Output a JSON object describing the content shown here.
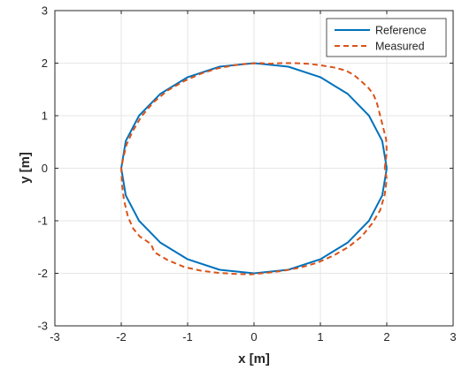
{
  "chart_data": {
    "type": "line",
    "title": "",
    "xlabel": "x [m]",
    "ylabel": "y [m]",
    "xlim": [
      -3,
      3
    ],
    "ylim": [
      -3,
      3
    ],
    "xticks": [
      -3,
      -2,
      -1,
      0,
      1,
      2,
      3
    ],
    "yticks": [
      -3,
      -2,
      -1,
      0,
      1,
      2,
      3
    ],
    "xtick_labels": [
      "-3",
      "-2",
      "-1",
      "0",
      "1",
      "2",
      "3"
    ],
    "ytick_labels": [
      "-3",
      "-2",
      "-1",
      "0",
      "1",
      "2",
      "3"
    ],
    "grid": true,
    "legend_position": "top-right",
    "series": [
      {
        "name": "Reference",
        "color": "#0072BD",
        "style": "solid",
        "x": [
          2.0,
          1.932,
          1.732,
          1.414,
          1.0,
          0.518,
          0.0,
          -0.518,
          -1.0,
          -1.414,
          -1.732,
          -1.932,
          -2.0,
          -1.932,
          -1.732,
          -1.414,
          -1.0,
          -0.518,
          0.0,
          0.518,
          1.0,
          1.414,
          1.732,
          1.932,
          2.0
        ],
        "y": [
          0.0,
          0.518,
          1.0,
          1.414,
          1.732,
          1.932,
          2.0,
          1.932,
          1.732,
          1.414,
          1.0,
          0.518,
          0.0,
          -0.518,
          -1.0,
          -1.414,
          -1.732,
          -1.932,
          -2.0,
          -1.932,
          -1.732,
          -1.414,
          -1.0,
          -0.518,
          0.0
        ]
      },
      {
        "name": "Measured",
        "color": "#D95319",
        "style": "dashed",
        "x": [
          1.97,
          2.0,
          1.99,
          1.96,
          1.93,
          1.89,
          1.85,
          1.8,
          1.73,
          1.62,
          1.5,
          1.38,
          1.2,
          1.0,
          0.8,
          0.6,
          0.4,
          0.25,
          0.1,
          -0.1,
          -0.3,
          -0.55,
          -0.8,
          -1.05,
          -1.3,
          -1.52,
          -1.7,
          -1.83,
          -1.92,
          -1.97,
          -2.0,
          -1.99,
          -1.96,
          -1.9,
          -1.82,
          -1.72,
          -1.6,
          -1.55,
          -1.5,
          -1.3,
          -1.05,
          -0.8,
          -0.55,
          -0.3,
          -0.05,
          0.2,
          0.45,
          0.7,
          0.95,
          1.2,
          1.42,
          1.62,
          1.78,
          1.9,
          1.97,
          2.0,
          1.97
        ],
        "y": [
          0.0,
          0.3,
          0.55,
          0.7,
          0.85,
          1.05,
          1.25,
          1.4,
          1.52,
          1.65,
          1.78,
          1.86,
          1.92,
          1.96,
          1.99,
          2.0,
          2.0,
          1.99,
          2.0,
          1.99,
          1.96,
          1.9,
          1.8,
          1.66,
          1.48,
          1.25,
          0.98,
          0.7,
          0.45,
          0.2,
          0.0,
          -0.3,
          -0.6,
          -0.92,
          -1.15,
          -1.3,
          -1.4,
          -1.45,
          -1.6,
          -1.75,
          -1.88,
          -1.95,
          -1.99,
          -2.01,
          -2.02,
          -1.99,
          -1.95,
          -1.89,
          -1.8,
          -1.66,
          -1.5,
          -1.3,
          -1.05,
          -0.8,
          -0.5,
          -0.2,
          0.0
        ]
      }
    ]
  }
}
